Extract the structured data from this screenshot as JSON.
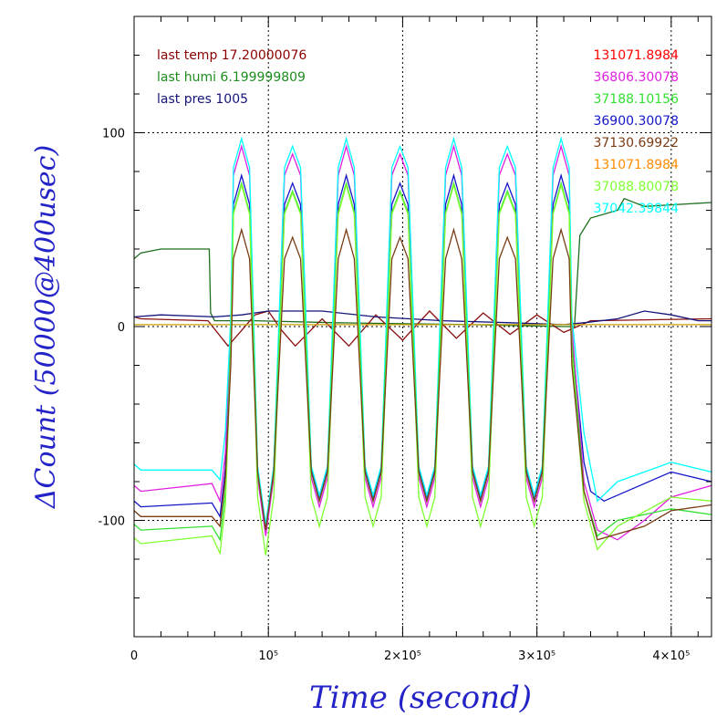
{
  "chart_data": {
    "type": "line",
    "xlabel": "Time (second)",
    "ylabel": "ΔCount (50000@400usec)",
    "xlim": [
      0,
      430000
    ],
    "ylim": [
      -160,
      160
    ],
    "grid": "dotted at x=100000,200000,300000,400000 and y=-100,0,100",
    "x_ticks": [
      {
        "value": 0,
        "label": "0"
      },
      {
        "value": 100000,
        "label": "10⁵"
      },
      {
        "value": 200000,
        "label": "2×10⁵"
      },
      {
        "value": 300000,
        "label": "3×10⁵"
      },
      {
        "value": 400000,
        "label": "4×10⁵"
      }
    ],
    "y_ticks": [
      {
        "value": 100,
        "label": "100"
      },
      {
        "value": 0,
        "label": "0"
      },
      {
        "value": -100,
        "label": "-100"
      }
    ],
    "info_lines": [
      {
        "text": "last temp 17.20000076",
        "color": "#8b0000"
      },
      {
        "text": "last humi 6.199999809",
        "color": "#1e8c1e"
      },
      {
        "text": "last pres 1005",
        "color": "#14147a"
      }
    ],
    "legend": [
      {
        "text": "131071.8984",
        "color": "#ff0000"
      },
      {
        "text": "36806.30078",
        "color": "#e020e0"
      },
      {
        "text": "37188.10156",
        "color": "#32e032"
      },
      {
        "text": "36900.30078",
        "color": "#1414c8"
      },
      {
        "text": "37130.69922",
        "color": "#7a3c14"
      },
      {
        "text": "131071.8984",
        "color": "#ff8c00"
      },
      {
        "text": "37088.80078",
        "color": "#80ff30"
      },
      {
        "text": "37042.39844",
        "color": "#00ffff"
      }
    ],
    "series": [
      {
        "kind": "env",
        "color": "#1e6e1e",
        "points": [
          [
            0,
            35
          ],
          [
            5000,
            38
          ],
          [
            20000,
            40
          ],
          [
            56000,
            40
          ],
          [
            57000,
            7
          ],
          [
            60000,
            3
          ],
          [
            90000,
            3
          ],
          [
            150000,
            2
          ],
          [
            250000,
            1
          ],
          [
            320000,
            0
          ],
          [
            328000,
            0
          ],
          [
            332000,
            47
          ],
          [
            340000,
            56
          ],
          [
            360000,
            60
          ],
          [
            365000,
            66
          ],
          [
            380000,
            62
          ],
          [
            430000,
            64
          ]
        ]
      },
      {
        "kind": "env",
        "color": "#8b1010",
        "points": [
          [
            0,
            5
          ],
          [
            5000,
            4
          ],
          [
            55000,
            3
          ],
          [
            70000,
            -10
          ],
          [
            80000,
            -2
          ],
          [
            90000,
            6
          ],
          [
            100000,
            8
          ],
          [
            110000,
            -2
          ],
          [
            120000,
            -10
          ],
          [
            140000,
            4
          ],
          [
            160000,
            -10
          ],
          [
            180000,
            6
          ],
          [
            200000,
            -7
          ],
          [
            220000,
            8
          ],
          [
            240000,
            -6
          ],
          [
            260000,
            7
          ],
          [
            280000,
            -4
          ],
          [
            300000,
            6
          ],
          [
            320000,
            -3
          ],
          [
            330000,
            0
          ],
          [
            340000,
            3
          ],
          [
            430000,
            4
          ]
        ]
      },
      {
        "kind": "env",
        "color": "#14147a",
        "points": [
          [
            0,
            5
          ],
          [
            20000,
            6
          ],
          [
            60000,
            5
          ],
          [
            80000,
            6
          ],
          [
            100000,
            8
          ],
          [
            140000,
            8
          ],
          [
            180000,
            5
          ],
          [
            230000,
            3
          ],
          [
            280000,
            2
          ],
          [
            320000,
            1
          ],
          [
            335000,
            2
          ],
          [
            360000,
            4
          ],
          [
            380000,
            8
          ],
          [
            400000,
            6
          ],
          [
            420000,
            3
          ],
          [
            430000,
            3
          ]
        ]
      },
      {
        "kind": "env",
        "color": "#c8a000",
        "points": [
          [
            0,
            1
          ],
          [
            430000,
            1
          ]
        ]
      },
      {
        "kind": "osc",
        "color": "#1414c8",
        "pre": -93,
        "amp": 83,
        "mid": -5,
        "post": [
          [
            335000,
            -70
          ],
          [
            340000,
            -85
          ],
          [
            350000,
            -90
          ],
          [
            400000,
            -75
          ],
          [
            430000,
            -80
          ]
        ]
      },
      {
        "kind": "osc",
        "color": "#e020e0",
        "pre": -85,
        "amp": 93,
        "mid": 0,
        "post": [
          [
            335000,
            -80
          ],
          [
            345000,
            -105
          ],
          [
            360000,
            -110
          ],
          [
            380000,
            -100
          ],
          [
            400000,
            -88
          ],
          [
            430000,
            -82
          ]
        ]
      },
      {
        "kind": "osc",
        "color": "#00ffff",
        "pre": -74,
        "amp": 92,
        "mid": 5,
        "post": [
          [
            335000,
            -55
          ],
          [
            345000,
            -90
          ],
          [
            360000,
            -80
          ],
          [
            400000,
            -70
          ],
          [
            430000,
            -75
          ]
        ]
      },
      {
        "kind": "osc",
        "color": "#32e032",
        "pre": -105,
        "amp": 82,
        "mid": -8,
        "post": [
          [
            335000,
            -85
          ],
          [
            345000,
            -108
          ],
          [
            360000,
            -100
          ],
          [
            400000,
            -94
          ],
          [
            430000,
            -97
          ]
        ]
      },
      {
        "kind": "osc",
        "color": "#80ff30",
        "pre": -112,
        "amp": 88,
        "mid": -15,
        "post": [
          [
            335000,
            -90
          ],
          [
            345000,
            -115
          ],
          [
            360000,
            -103
          ],
          [
            400000,
            -88
          ],
          [
            430000,
            -90
          ]
        ]
      },
      {
        "kind": "osc",
        "color": "#7a3c14",
        "pre": -98,
        "amp": 70,
        "mid": -20,
        "post": [
          [
            335000,
            -85
          ],
          [
            345000,
            -110
          ],
          [
            380000,
            -103
          ],
          [
            400000,
            -95
          ],
          [
            430000,
            -92
          ]
        ]
      }
    ]
  }
}
